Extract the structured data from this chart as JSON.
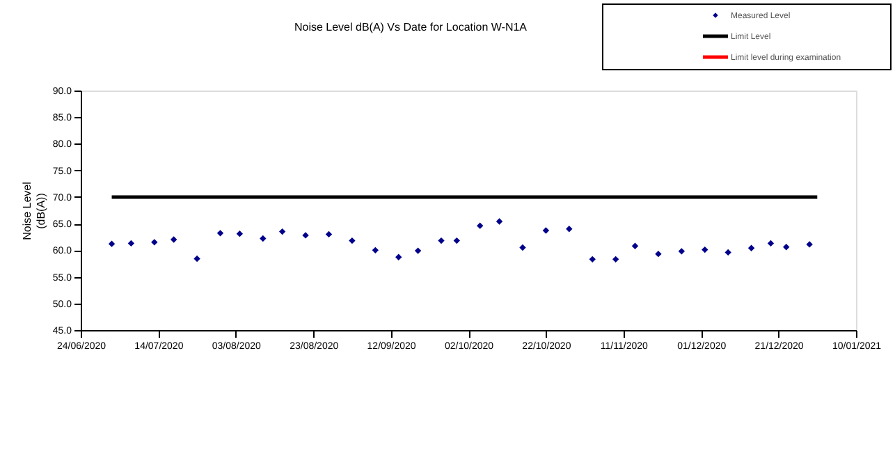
{
  "chart_data": {
    "type": "scatter",
    "title": "Noise Level dB(A) Vs Date for Location W-N1A",
    "ylabel": "Noise Level\n(dB(A))",
    "xlim": [
      "2020-06-24",
      "2021-01-10"
    ],
    "xticks": [
      {
        "value": "2020-06-24",
        "label": "24/06/2020"
      },
      {
        "value": "2020-07-14",
        "label": "14/07/2020"
      },
      {
        "value": "2020-08-03",
        "label": "03/08/2020"
      },
      {
        "value": "2020-08-23",
        "label": "23/08/2020"
      },
      {
        "value": "2020-09-12",
        "label": "12/09/2020"
      },
      {
        "value": "2020-10-02",
        "label": "02/10/2020"
      },
      {
        "value": "2020-10-22",
        "label": "22/10/2020"
      },
      {
        "value": "2020-11-11",
        "label": "11/11/2020"
      },
      {
        "value": "2020-12-01",
        "label": "01/12/2020"
      },
      {
        "value": "2020-12-21",
        "label": "21/12/2020"
      },
      {
        "value": "2021-01-10",
        "label": "10/01/2021"
      }
    ],
    "ylim": [
      45,
      90
    ],
    "yticks": [
      {
        "value": 45,
        "label": "45.0"
      },
      {
        "value": 50,
        "label": "50.0"
      },
      {
        "value": 55,
        "label": "55.0"
      },
      {
        "value": 60,
        "label": "60.0"
      },
      {
        "value": 65,
        "label": "65.0"
      },
      {
        "value": 70,
        "label": "70.0"
      },
      {
        "value": 75,
        "label": "75.0"
      },
      {
        "value": 80,
        "label": "80.0"
      },
      {
        "value": 85,
        "label": "85.0"
      },
      {
        "value": 90,
        "label": "90.0"
      }
    ],
    "legend": "top right",
    "grid": false,
    "series": [
      {
        "name": "Measured Level",
        "type": "scatter",
        "marker": "diamond",
        "color": "#00008b",
        "x": [
          "2020-07-02",
          "2020-07-07",
          "2020-07-13",
          "2020-07-18",
          "2020-07-24",
          "2020-07-30",
          "2020-08-04",
          "2020-08-10",
          "2020-08-15",
          "2020-08-21",
          "2020-08-27",
          "2020-09-02",
          "2020-09-08",
          "2020-09-14",
          "2020-09-19",
          "2020-09-25",
          "2020-09-29",
          "2020-10-05",
          "2020-10-10",
          "2020-10-16",
          "2020-10-22",
          "2020-10-28",
          "2020-11-03",
          "2020-11-09",
          "2020-11-14",
          "2020-11-20",
          "2020-11-26",
          "2020-12-02",
          "2020-12-08",
          "2020-12-14",
          "2020-12-19",
          "2020-12-23",
          "2020-12-29"
        ],
        "values": [
          61.2,
          61.3,
          61.5,
          62.0,
          58.4,
          63.2,
          63.1,
          62.2,
          63.5,
          62.8,
          63.0,
          61.8,
          60.0,
          58.7,
          59.9,
          61.8,
          61.8,
          64.6,
          65.4,
          60.5,
          63.7,
          64.0,
          58.3,
          58.3,
          60.8,
          59.3,
          59.8,
          60.1,
          59.6,
          60.4,
          61.3,
          60.6,
          61.1
        ]
      },
      {
        "name": "Limit Level",
        "type": "line",
        "line_style": "solid",
        "color": "#000000",
        "x": [
          "2020-07-02",
          "2020-12-31"
        ],
        "values": [
          70,
          70
        ]
      },
      {
        "name": "Limit level during examination",
        "type": "line",
        "line_style": "solid",
        "color": "#ff0000"
      }
    ]
  }
}
